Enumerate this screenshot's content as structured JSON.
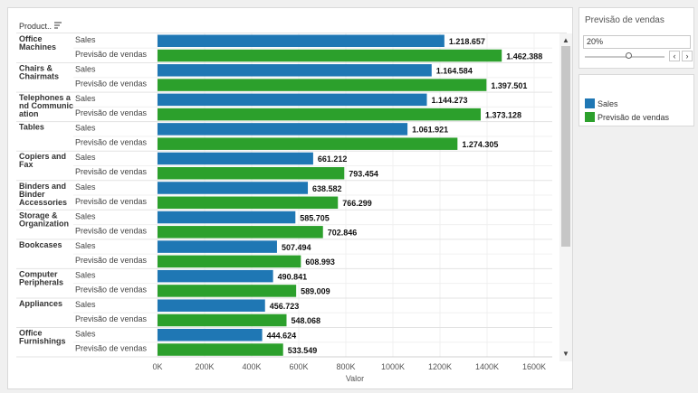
{
  "header": {
    "row_header": "Product.."
  },
  "colors": {
    "sales": "#1f77b4",
    "forecast": "#2ca02c"
  },
  "parameter": {
    "title": "Previsão de vendas",
    "value": "20%"
  },
  "legend": {
    "items": [
      {
        "label": "Sales",
        "color": "#1f77b4"
      },
      {
        "label": "Previsão de vendas",
        "color": "#2ca02c"
      }
    ]
  },
  "chart_data": {
    "type": "bar",
    "orientation": "horizontal",
    "xlabel": "Valor",
    "xlim": [
      0,
      1600000
    ],
    "x_ticks": [
      "0K",
      "200K",
      "400K",
      "600K",
      "800K",
      "1000K",
      "1200K",
      "1400K",
      "1600K"
    ],
    "categories": [
      {
        "label_lines": [
          "Office",
          "Machines"
        ],
        "sales": 1218657,
        "sales_label": "1.218.657",
        "forecast": 1462388,
        "forecast_label": "1.462.388"
      },
      {
        "label_lines": [
          "Chairs &",
          "Chairmats"
        ],
        "sales": 1164584,
        "sales_label": "1.164.584",
        "forecast": 1397501,
        "forecast_label": "1.397.501"
      },
      {
        "label_lines": [
          "Telephones a",
          "nd Communic",
          "ation"
        ],
        "sales": 1144273,
        "sales_label": "1.144.273",
        "forecast": 1373128,
        "forecast_label": "1.373.128"
      },
      {
        "label_lines": [
          "Tables"
        ],
        "sales": 1061921,
        "sales_label": "1.061.921",
        "forecast": 1274305,
        "forecast_label": "1.274.305"
      },
      {
        "label_lines": [
          "Copiers and",
          "Fax"
        ],
        "sales": 661212,
        "sales_label": "661.212",
        "forecast": 793454,
        "forecast_label": "793.454"
      },
      {
        "label_lines": [
          "Binders and",
          "Binder",
          "Accessories"
        ],
        "sales": 638582,
        "sales_label": "638.582",
        "forecast": 766299,
        "forecast_label": "766.299"
      },
      {
        "label_lines": [
          "Storage &",
          "Organization"
        ],
        "sales": 585705,
        "sales_label": "585.705",
        "forecast": 702846,
        "forecast_label": "702.846"
      },
      {
        "label_lines": [
          "Bookcases"
        ],
        "sales": 507494,
        "sales_label": "507.494",
        "forecast": 608993,
        "forecast_label": "608.993"
      },
      {
        "label_lines": [
          "Computer",
          "Peripherals"
        ],
        "sales": 490841,
        "sales_label": "490.841",
        "forecast": 589009,
        "forecast_label": "589.009"
      },
      {
        "label_lines": [
          "Appliances"
        ],
        "sales": 456723,
        "sales_label": "456.723",
        "forecast": 548068,
        "forecast_label": "548.068"
      },
      {
        "label_lines": [
          "Office",
          "Furnishings"
        ],
        "sales": 444624,
        "sales_label": "444.624",
        "forecast": 533549,
        "forecast_label": "533.549"
      }
    ],
    "measure_labels": [
      "Sales",
      "Previsão de vendas"
    ]
  }
}
